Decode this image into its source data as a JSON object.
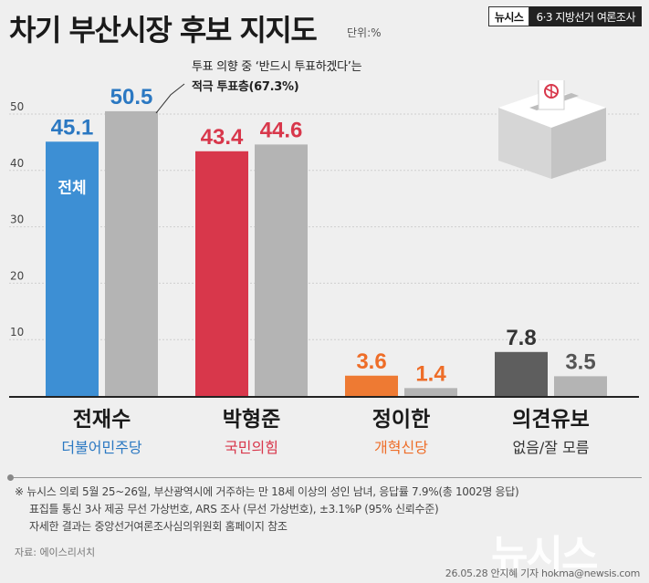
{
  "header": {
    "title": "차기 부산시장 후보 지지도",
    "unit": "단위:%",
    "badge_outlet": "뉴시스",
    "badge_topic": "6·3 지방선거 여론조사"
  },
  "callout": {
    "line1": "투표 의향 중 ‘반드시 투표하겠다’는",
    "line2": "적극 투표층(67.3%)"
  },
  "chart_data": {
    "type": "bar",
    "categories": [
      "전재수",
      "박형준",
      "정이한",
      "의견유보"
    ],
    "subtitles": [
      "더불어민주당",
      "국민의힘",
      "개혁신당",
      "없음/잘 모름"
    ],
    "series": [
      {
        "label": "전체",
        "values": [
          45.1,
          43.4,
          3.6,
          7.8
        ],
        "colors": [
          "#3d8fd4",
          "#d8374b",
          "#ee7a33",
          "#5e5e5e"
        ]
      },
      {
        "values": [
          50.5,
          44.6,
          1.4,
          3.5
        ],
        "colors": [
          "#b4b4b4",
          "#b4b4b4",
          "#b4b4b4",
          "#b4b4b4"
        ]
      }
    ],
    "value_label_colors": [
      [
        "#2b78c2",
        "#2b78c2"
      ],
      [
        "#d8374b",
        "#d8374b"
      ],
      [
        "#ee6d28",
        "#ee6d28"
      ],
      [
        "#333333",
        "#555555"
      ]
    ],
    "subtitle_colors": [
      "#2b78c2",
      "#d8374b",
      "#ee6d28",
      "#333333"
    ],
    "yticks": [
      10,
      20,
      30,
      40,
      50
    ],
    "ylim": [
      0,
      55
    ]
  },
  "notes": {
    "line1": "※ 뉴시스 의뢰 5월 25~26일, 부산광역시에 거주하는 만 18세 이상의 성인 남녀, 응답률 7.9%(총 1002명 응답)",
    "line2": "표집틀 통신 3사 제공 무선 가상번호, ARS 조사 (무선 가상번호), ±3.1%P (95% 신뢰수준)",
    "line3": "자세한 결과는 중앙선거여론조사심의위원회 홈페이지 참조"
  },
  "source": "자료: 에이스리서치",
  "watermark": "뉴시스",
  "credit": "26.05.28 안지혜 기자 hokma@newsis.com"
}
